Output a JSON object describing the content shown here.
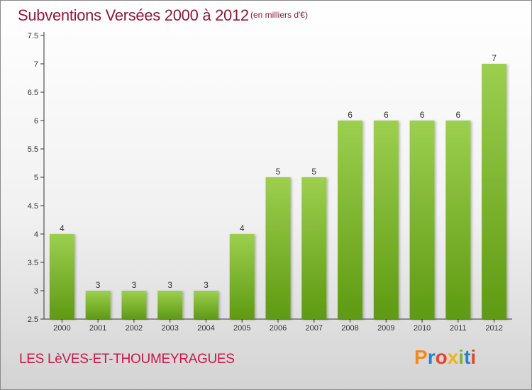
{
  "title": "Subventions Versées 2000 à 2012",
  "subtitle": "(en milliers d'€)",
  "commune": "LES LèVES-ET-THOUMEYRAGUES",
  "logo": {
    "letters": [
      "P",
      "r",
      "o",
      "x",
      "i",
      "t",
      "i"
    ],
    "colors": [
      "#f08a1c",
      "#2a7fd0",
      "#e4462a",
      "#f0b418",
      "#7ab830",
      "#2a7fd0",
      "#e4462a"
    ]
  },
  "colors": {
    "bar_top": "#9ccf4e",
    "bar_bottom": "#5e9a12",
    "axis": "#333333",
    "grid": "#cfcfcf"
  },
  "chart_data": {
    "type": "bar",
    "categories": [
      "2000",
      "2001",
      "2002",
      "2003",
      "2004",
      "2005",
      "2006",
      "2007",
      "2008",
      "2009",
      "2010",
      "2011",
      "2012"
    ],
    "values": [
      4,
      3,
      3,
      3,
      3,
      4,
      5,
      5,
      6,
      6,
      6,
      6,
      7
    ],
    "ylim": [
      2.5,
      7.5
    ],
    "yticks": [
      "2.5",
      "3",
      "3.5",
      "4",
      "4.5",
      "5",
      "5.5",
      "6",
      "6.5",
      "7",
      "7.5"
    ],
    "grid": false,
    "title": "Subventions Versées 2000 à 2012"
  }
}
